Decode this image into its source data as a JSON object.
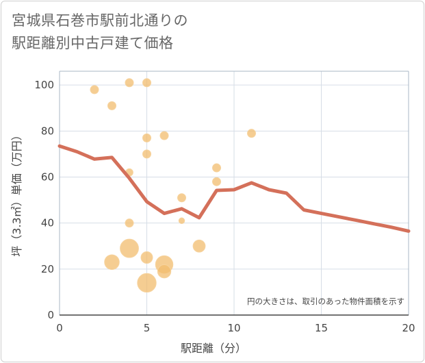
{
  "chart_data": {
    "type": "scatter",
    "title": [
      "宮城県石巻市駅前北通りの",
      "駅距離別中古戸建て価格"
    ],
    "xlabel": "駅距離（分）",
    "ylabel": "坪（3.3㎡）単価（万円）",
    "xlim": [
      0,
      20
    ],
    "ylim": [
      0,
      106
    ],
    "x_ticks": [
      0,
      5,
      10,
      15,
      20
    ],
    "y_ticks": [
      0,
      20,
      40,
      60,
      80,
      100
    ],
    "grid": true,
    "annotation": "円の大きさは、取引のあった物件面積を示す",
    "colors": {
      "bubble": "#f2bc6e",
      "line": "#d4705a",
      "grid": "#d6dde6",
      "plot_border": "#a9b7c6"
    },
    "points": [
      {
        "x": 2,
        "y": 98,
        "size": 1
      },
      {
        "x": 3,
        "y": 91,
        "size": 1
      },
      {
        "x": 4,
        "y": 101,
        "size": 1
      },
      {
        "x": 5,
        "y": 101,
        "size": 1
      },
      {
        "x": 5,
        "y": 77,
        "size": 1
      },
      {
        "x": 6,
        "y": 78,
        "size": 1
      },
      {
        "x": 5,
        "y": 70,
        "size": 1
      },
      {
        "x": 4,
        "y": 62,
        "size": 0.8
      },
      {
        "x": 11,
        "y": 79,
        "size": 1
      },
      {
        "x": 9,
        "y": 64,
        "size": 1
      },
      {
        "x": 9,
        "y": 58,
        "size": 1
      },
      {
        "x": 7,
        "y": 51,
        "size": 1
      },
      {
        "x": 7,
        "y": 41,
        "size": 0.5
      },
      {
        "x": 4,
        "y": 40,
        "size": 1
      },
      {
        "x": 8,
        "y": 30,
        "size": 2.2
      },
      {
        "x": 4,
        "y": 29,
        "size": 5
      },
      {
        "x": 3,
        "y": 23,
        "size": 3.2
      },
      {
        "x": 5,
        "y": 25,
        "size": 2
      },
      {
        "x": 6,
        "y": 22,
        "size": 4.5
      },
      {
        "x": 6,
        "y": 19,
        "size": 2.6
      },
      {
        "x": 5,
        "y": 14,
        "size": 5.2
      }
    ],
    "series": [
      {
        "type": "line",
        "x": [
          0,
          1,
          2,
          3,
          4,
          5,
          6,
          7,
          8,
          9,
          10,
          11,
          12,
          13,
          14,
          15,
          16,
          17,
          18,
          19,
          20
        ],
        "values": [
          73.5,
          71,
          67.8,
          68.5,
          59.5,
          49.3,
          44.2,
          46.2,
          42.3,
          54.2,
          54.5,
          57.5,
          54.5,
          53,
          45.7,
          44.2,
          42.7,
          41.2,
          39.7,
          38.2,
          36.5
        ]
      }
    ]
  }
}
